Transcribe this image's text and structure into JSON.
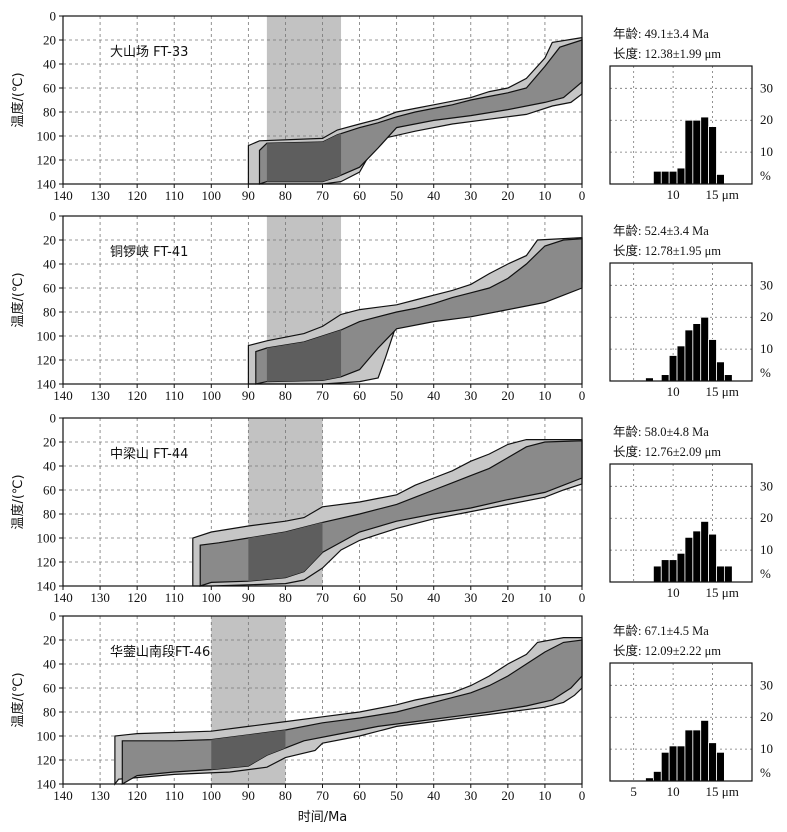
{
  "x_axis_label": "时间/Ma",
  "y_axis_label": "温度/(℃)",
  "chart_data": [
    {
      "type": "area",
      "sample": "大山场 FT-33",
      "x_ticks": [
        140,
        130,
        120,
        110,
        100,
        90,
        80,
        70,
        60,
        50,
        40,
        30,
        20,
        10,
        0
      ],
      "y_ticks": [
        0,
        20,
        40,
        60,
        80,
        100,
        120,
        140
      ],
      "xlim": [
        140,
        0
      ],
      "ylim": [
        0,
        140
      ],
      "grid": true,
      "shaded_interval_ma": [
        85,
        65
      ],
      "outer_envelope": [
        [
          90,
          140
        ],
        [
          90,
          108
        ],
        [
          87,
          104
        ],
        [
          70,
          102
        ],
        [
          66,
          95
        ],
        [
          60,
          90
        ],
        [
          55,
          86
        ],
        [
          50,
          80
        ],
        [
          45,
          77
        ],
        [
          40,
          74
        ],
        [
          35,
          71
        ],
        [
          30,
          68
        ],
        [
          25,
          63
        ],
        [
          20,
          60
        ],
        [
          15,
          52
        ],
        [
          10,
          35
        ],
        [
          8,
          22
        ],
        [
          0,
          18
        ],
        [
          0,
          65
        ],
        [
          3,
          72
        ],
        [
          8,
          75
        ],
        [
          15,
          82
        ],
        [
          25,
          86
        ],
        [
          35,
          90
        ],
        [
          45,
          96
        ],
        [
          55,
          103
        ],
        [
          60,
          130
        ],
        [
          65,
          138
        ],
        [
          70,
          140
        ]
      ],
      "inner_envelope": [
        [
          87,
          140
        ],
        [
          87,
          112
        ],
        [
          85,
          106
        ],
        [
          70,
          105
        ],
        [
          66,
          99
        ],
        [
          60,
          93
        ],
        [
          55,
          89
        ],
        [
          50,
          84
        ],
        [
          45,
          80
        ],
        [
          40,
          77
        ],
        [
          35,
          74
        ],
        [
          30,
          70
        ],
        [
          25,
          67
        ],
        [
          20,
          64
        ],
        [
          15,
          60
        ],
        [
          10,
          42
        ],
        [
          6,
          26
        ],
        [
          0,
          20
        ],
        [
          0,
          55
        ],
        [
          5,
          68
        ],
        [
          10,
          72
        ],
        [
          20,
          78
        ],
        [
          30,
          83
        ],
        [
          40,
          87
        ],
        [
          50,
          93
        ],
        [
          55,
          110
        ],
        [
          60,
          126
        ],
        [
          66,
          134
        ],
        [
          70,
          138
        ],
        [
          85,
          138
        ]
      ],
      "histogram": {
        "age_text": "年龄: 49.1±3.4 Ma",
        "length_text": "长度: 12.38±1.99 μm",
        "x_ticks": [
          "10",
          "15 μm"
        ],
        "x_range": [
          2,
          20
        ],
        "y_ticks": [
          "30",
          "20",
          "10",
          "%"
        ],
        "y_max": 30,
        "bins": [
          [
            8,
            4
          ],
          [
            9,
            4
          ],
          [
            10,
            4
          ],
          [
            11,
            5
          ],
          [
            12,
            20
          ],
          [
            13,
            20
          ],
          [
            14,
            21
          ],
          [
            15,
            18
          ],
          [
            16,
            3
          ]
        ]
      }
    },
    {
      "type": "area",
      "sample": "铜锣峡 FT-41",
      "x_ticks": [
        140,
        130,
        120,
        110,
        100,
        90,
        80,
        70,
        60,
        50,
        40,
        30,
        20,
        10,
        0
      ],
      "y_ticks": [
        0,
        20,
        40,
        60,
        80,
        100,
        120,
        140
      ],
      "xlim": [
        140,
        0
      ],
      "ylim": [
        0,
        140
      ],
      "grid": true,
      "shaded_interval_ma": [
        85,
        65
      ],
      "outer_envelope": [
        [
          90,
          140
        ],
        [
          90,
          108
        ],
        [
          85,
          104
        ],
        [
          75,
          98
        ],
        [
          70,
          92
        ],
        [
          65,
          82
        ],
        [
          60,
          78
        ],
        [
          50,
          74
        ],
        [
          45,
          70
        ],
        [
          40,
          66
        ],
        [
          35,
          62
        ],
        [
          30,
          57
        ],
        [
          25,
          48
        ],
        [
          20,
          40
        ],
        [
          15,
          33
        ],
        [
          12,
          20
        ],
        [
          0,
          18
        ],
        [
          0,
          55
        ],
        [
          5,
          62
        ],
        [
          10,
          68
        ],
        [
          20,
          76
        ],
        [
          30,
          82
        ],
        [
          40,
          86
        ],
        [
          50,
          90
        ],
        [
          53,
          118
        ],
        [
          55,
          135
        ],
        [
          60,
          138
        ],
        [
          70,
          140
        ]
      ],
      "inner_envelope": [
        [
          88,
          140
        ],
        [
          88,
          113
        ],
        [
          85,
          110
        ],
        [
          75,
          105
        ],
        [
          70,
          100
        ],
        [
          65,
          95
        ],
        [
          60,
          88
        ],
        [
          50,
          80
        ],
        [
          45,
          77
        ],
        [
          40,
          73
        ],
        [
          35,
          68
        ],
        [
          30,
          64
        ],
        [
          25,
          60
        ],
        [
          20,
          52
        ],
        [
          15,
          40
        ],
        [
          10,
          25
        ],
        [
          5,
          20
        ],
        [
          0,
          19
        ],
        [
          0,
          60
        ],
        [
          5,
          66
        ],
        [
          10,
          72
        ],
        [
          20,
          78
        ],
        [
          30,
          84
        ],
        [
          40,
          88
        ],
        [
          50,
          94
        ],
        [
          55,
          110
        ],
        [
          60,
          128
        ],
        [
          65,
          134
        ],
        [
          70,
          137
        ],
        [
          85,
          138
        ]
      ],
      "histogram": {
        "age_text": "年龄: 52.4±3.4 Ma",
        "length_text": "长度: 12.78±1.95 μm",
        "x_ticks": [
          "10",
          "15 μm"
        ],
        "x_range": [
          2,
          20
        ],
        "y_ticks": [
          "30",
          "20",
          "10",
          "%"
        ],
        "y_max": 30,
        "bins": [
          [
            7,
            1
          ],
          [
            9,
            2
          ],
          [
            10,
            8
          ],
          [
            11,
            11
          ],
          [
            12,
            16
          ],
          [
            13,
            18
          ],
          [
            14,
            20
          ],
          [
            15,
            13
          ],
          [
            16,
            6
          ],
          [
            17,
            2
          ]
        ]
      }
    },
    {
      "type": "area",
      "sample": "中梁山 FT-44",
      "x_ticks": [
        140,
        130,
        120,
        110,
        100,
        90,
        80,
        70,
        60,
        50,
        40,
        30,
        20,
        10,
        0
      ],
      "y_ticks": [
        0,
        20,
        40,
        60,
        80,
        100,
        120,
        140
      ],
      "xlim": [
        140,
        0
      ],
      "ylim": [
        0,
        140
      ],
      "grid": true,
      "shaded_interval_ma": [
        90,
        70
      ],
      "outer_envelope": [
        [
          105,
          140
        ],
        [
          105,
          100
        ],
        [
          100,
          95
        ],
        [
          90,
          90
        ],
        [
          80,
          86
        ],
        [
          75,
          83
        ],
        [
          70,
          74
        ],
        [
          60,
          70
        ],
        [
          55,
          67
        ],
        [
          50,
          64
        ],
        [
          45,
          56
        ],
        [
          40,
          50
        ],
        [
          35,
          44
        ],
        [
          30,
          36
        ],
        [
          25,
          30
        ],
        [
          20,
          22
        ],
        [
          15,
          18
        ],
        [
          0,
          18
        ],
        [
          0,
          55
        ],
        [
          5,
          60
        ],
        [
          10,
          66
        ],
        [
          20,
          72
        ],
        [
          30,
          78
        ],
        [
          40,
          84
        ],
        [
          50,
          92
        ],
        [
          60,
          102
        ],
        [
          65,
          110
        ],
        [
          70,
          125
        ],
        [
          75,
          135
        ],
        [
          80,
          138
        ],
        [
          100,
          140
        ]
      ],
      "inner_envelope": [
        [
          103,
          140
        ],
        [
          103,
          106
        ],
        [
          98,
          104
        ],
        [
          90,
          100
        ],
        [
          80,
          95
        ],
        [
          70,
          87
        ],
        [
          60,
          80
        ],
        [
          50,
          72
        ],
        [
          45,
          66
        ],
        [
          40,
          60
        ],
        [
          35,
          54
        ],
        [
          30,
          48
        ],
        [
          25,
          42
        ],
        [
          20,
          33
        ],
        [
          15,
          24
        ],
        [
          10,
          20
        ],
        [
          0,
          19
        ],
        [
          0,
          50
        ],
        [
          5,
          56
        ],
        [
          10,
          62
        ],
        [
          20,
          68
        ],
        [
          30,
          75
        ],
        [
          40,
          80
        ],
        [
          50,
          86
        ],
        [
          60,
          95
        ],
        [
          70,
          112
        ],
        [
          75,
          128
        ],
        [
          80,
          133
        ],
        [
          90,
          136
        ],
        [
          100,
          137
        ]
      ],
      "histogram": {
        "age_text": "年龄: 58.0±4.8 Ma",
        "length_text": "长度: 12.76±2.09 μm",
        "x_ticks": [
          "10",
          "15 μm"
        ],
        "x_range": [
          2,
          20
        ],
        "y_ticks": [
          "30",
          "20",
          "10",
          "%"
        ],
        "y_max": 30,
        "bins": [
          [
            8,
            5
          ],
          [
            9,
            7
          ],
          [
            10,
            7
          ],
          [
            11,
            9
          ],
          [
            12,
            14
          ],
          [
            13,
            16
          ],
          [
            14,
            19
          ],
          [
            15,
            15
          ],
          [
            16,
            5
          ],
          [
            17,
            5
          ]
        ]
      }
    },
    {
      "type": "area",
      "sample": "华蓥山南段FT-46",
      "x_ticks": [
        140,
        130,
        120,
        110,
        100,
        90,
        80,
        70,
        60,
        50,
        40,
        30,
        20,
        10,
        0
      ],
      "y_ticks": [
        0,
        20,
        40,
        60,
        80,
        100,
        120,
        140
      ],
      "xlim": [
        140,
        0
      ],
      "ylim": [
        0,
        140
      ],
      "grid": true,
      "shaded_interval_ma": [
        100,
        80
      ],
      "outer_envelope": [
        [
          126,
          140
        ],
        [
          126,
          100
        ],
        [
          120,
          98
        ],
        [
          100,
          96
        ],
        [
          90,
          92
        ],
        [
          80,
          88
        ],
        [
          70,
          84
        ],
        [
          60,
          80
        ],
        [
          50,
          74
        ],
        [
          45,
          70
        ],
        [
          40,
          67
        ],
        [
          35,
          64
        ],
        [
          30,
          58
        ],
        [
          25,
          50
        ],
        [
          20,
          40
        ],
        [
          15,
          32
        ],
        [
          12,
          22
        ],
        [
          5,
          18
        ],
        [
          0,
          18
        ],
        [
          0,
          60
        ],
        [
          2,
          66
        ],
        [
          5,
          72
        ],
        [
          10,
          76
        ],
        [
          20,
          80
        ],
        [
          30,
          84
        ],
        [
          40,
          88
        ],
        [
          50,
          92
        ],
        [
          60,
          100
        ],
        [
          70,
          106
        ],
        [
          72,
          112
        ],
        [
          80,
          118
        ],
        [
          85,
          126
        ],
        [
          95,
          130
        ],
        [
          110,
          132
        ],
        [
          125,
          136
        ]
      ],
      "inner_envelope": [
        [
          124,
          140
        ],
        [
          124,
          104
        ],
        [
          110,
          104
        ],
        [
          100,
          103
        ],
        [
          90,
          99
        ],
        [
          80,
          95
        ],
        [
          70,
          89
        ],
        [
          60,
          85
        ],
        [
          50,
          80
        ],
        [
          45,
          76
        ],
        [
          40,
          72
        ],
        [
          35,
          68
        ],
        [
          30,
          64
        ],
        [
          25,
          58
        ],
        [
          20,
          50
        ],
        [
          15,
          40
        ],
        [
          10,
          30
        ],
        [
          5,
          22
        ],
        [
          0,
          20
        ],
        [
          0,
          50
        ],
        [
          3,
          60
        ],
        [
          8,
          70
        ],
        [
          15,
          75
        ],
        [
          25,
          80
        ],
        [
          35,
          84
        ],
        [
          45,
          88
        ],
        [
          55,
          92
        ],
        [
          65,
          98
        ],
        [
          75,
          104
        ],
        [
          85,
          116
        ],
        [
          90,
          125
        ],
        [
          100,
          128
        ],
        [
          110,
          130
        ],
        [
          120,
          133
        ]
      ],
      "histogram": {
        "age_text": "年龄: 67.1±4.5 Ma",
        "length_text": "长度: 12.09±2.22 μm",
        "x_ticks": [
          "5",
          "10",
          "15 μm"
        ],
        "x_range": [
          2,
          20
        ],
        "y_ticks": [
          "30",
          "20",
          "10",
          "%"
        ],
        "y_max": 30,
        "bins": [
          [
            7,
            1
          ],
          [
            8,
            3
          ],
          [
            9,
            9
          ],
          [
            10,
            11
          ],
          [
            11,
            11
          ],
          [
            12,
            16
          ],
          [
            13,
            16
          ],
          [
            14,
            19
          ],
          [
            15,
            12
          ],
          [
            16,
            9
          ]
        ]
      }
    }
  ]
}
